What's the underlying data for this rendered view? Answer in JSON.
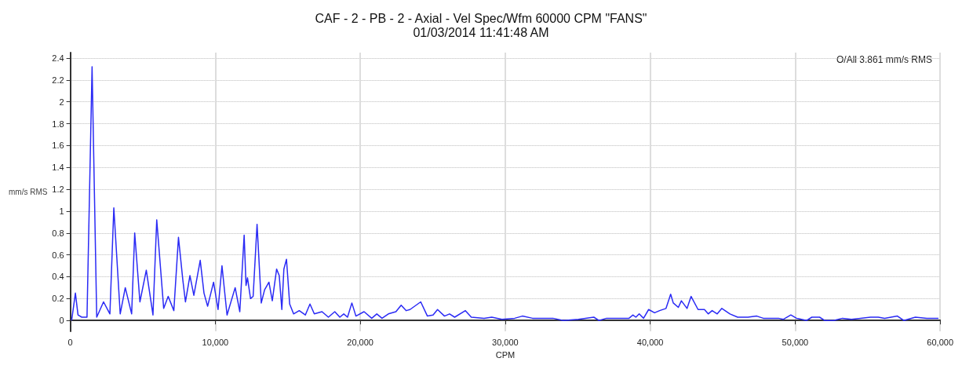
{
  "chart_data": {
    "type": "line",
    "title": "CAF - 2 - PB - 2 - Axial - Vel Spec/Wfm 60000 CPM \"FANS\"",
    "subtitle": "01/03/2014 11:41:48 AM",
    "xlabel": "CPM",
    "ylabel": "mm/s RMS",
    "annotations": [
      "O/All 3.861 mm/s RMS"
    ],
    "series": [
      {
        "color": "#2a2af5",
        "x": [
          90,
          350,
          530,
          790,
          1150,
          1500,
          1820,
          2290,
          2730,
          3000,
          3440,
          3790,
          4230,
          4440,
          4800,
          5240,
          5700,
          5960,
          6440,
          6750,
          7140,
          7460,
          7760,
          7940,
          8250,
          8520,
          8960,
          9220,
          9470,
          9880,
          10190,
          10460,
          10810,
          11370,
          11690,
          11990,
          12120,
          12220,
          12430,
          12610,
          12880,
          13170,
          13400,
          13700,
          13930,
          14230,
          14410,
          14590,
          14730,
          14910,
          15130,
          15400,
          15790,
          16210,
          16530,
          16830,
          17360,
          17800,
          18240,
          18590,
          18860,
          19120,
          19420,
          19700,
          20260,
          20790,
          21140,
          21500,
          21940,
          22460,
          22820,
          23170,
          23430,
          24170,
          24630,
          25020,
          25330,
          25810,
          26160,
          26510,
          27250,
          27660,
          28540,
          29070,
          29770,
          30650,
          31180,
          31880,
          33290,
          34000,
          35050,
          36110,
          36460,
          36990,
          37870,
          38540,
          38800,
          39010,
          39240,
          39540,
          39890,
          40300,
          40650,
          41090,
          41410,
          41590,
          41940,
          42150,
          42540,
          42820,
          43300,
          43740,
          44000,
          44270,
          44620,
          44940,
          45500,
          46030,
          46740,
          47350,
          47800,
          48850,
          49170,
          49700,
          50090,
          50790,
          51150,
          51680,
          52030,
          52650,
          53260,
          53880,
          54500,
          55200,
          55730,
          56170,
          57050,
          57490,
          58290,
          59080,
          59880
        ],
        "values": [
          0.0,
          0.25,
          0.05,
          0.03,
          0.03,
          2.32,
          0.03,
          0.17,
          0.06,
          1.03,
          0.06,
          0.3,
          0.06,
          0.8,
          0.17,
          0.46,
          0.05,
          0.92,
          0.11,
          0.22,
          0.09,
          0.76,
          0.37,
          0.17,
          0.41,
          0.23,
          0.55,
          0.25,
          0.13,
          0.35,
          0.1,
          0.5,
          0.05,
          0.3,
          0.08,
          0.78,
          0.32,
          0.39,
          0.2,
          0.22,
          0.88,
          0.16,
          0.28,
          0.35,
          0.18,
          0.47,
          0.41,
          0.1,
          0.47,
          0.56,
          0.15,
          0.06,
          0.09,
          0.05,
          0.15,
          0.06,
          0.08,
          0.03,
          0.08,
          0.03,
          0.06,
          0.03,
          0.16,
          0.04,
          0.08,
          0.02,
          0.06,
          0.02,
          0.06,
          0.08,
          0.14,
          0.09,
          0.1,
          0.17,
          0.04,
          0.05,
          0.1,
          0.04,
          0.06,
          0.03,
          0.09,
          0.03,
          0.02,
          0.03,
          0.01,
          0.02,
          0.04,
          0.02,
          0.02,
          0.0,
          0.01,
          0.03,
          0.0,
          0.02,
          0.02,
          0.02,
          0.05,
          0.03,
          0.06,
          0.02,
          0.1,
          0.07,
          0.09,
          0.11,
          0.24,
          0.16,
          0.12,
          0.18,
          0.11,
          0.22,
          0.1,
          0.1,
          0.06,
          0.09,
          0.06,
          0.11,
          0.06,
          0.03,
          0.03,
          0.04,
          0.02,
          0.02,
          0.01,
          0.05,
          0.02,
          0.0,
          0.03,
          0.03,
          0.0,
          0.0,
          0.02,
          0.01,
          0.02,
          0.03,
          0.03,
          0.02,
          0.04,
          0.0,
          0.03,
          0.02,
          0.02
        ]
      }
    ],
    "xlim": [
      0,
      60000
    ],
    "xticks": [
      0,
      {
        "value": 10000,
        "label": "10,000"
      },
      {
        "value": 20000,
        "label": "20,000"
      },
      {
        "value": 30000,
        "label": "30,000"
      },
      {
        "value": 40000,
        "label": "40,000"
      },
      {
        "value": 50000,
        "label": "50,000"
      },
      {
        "value": 60000,
        "label": "60,000"
      }
    ],
    "ylim": [
      -0.1,
      2.45
    ],
    "yticks": [
      0,
      0.2,
      0.4,
      0.6,
      0.8,
      1,
      1.2,
      1.4,
      1.6,
      1.8,
      2,
      2.2,
      2.4
    ],
    "grid": true,
    "marker": "none",
    "line_style": "solid"
  }
}
